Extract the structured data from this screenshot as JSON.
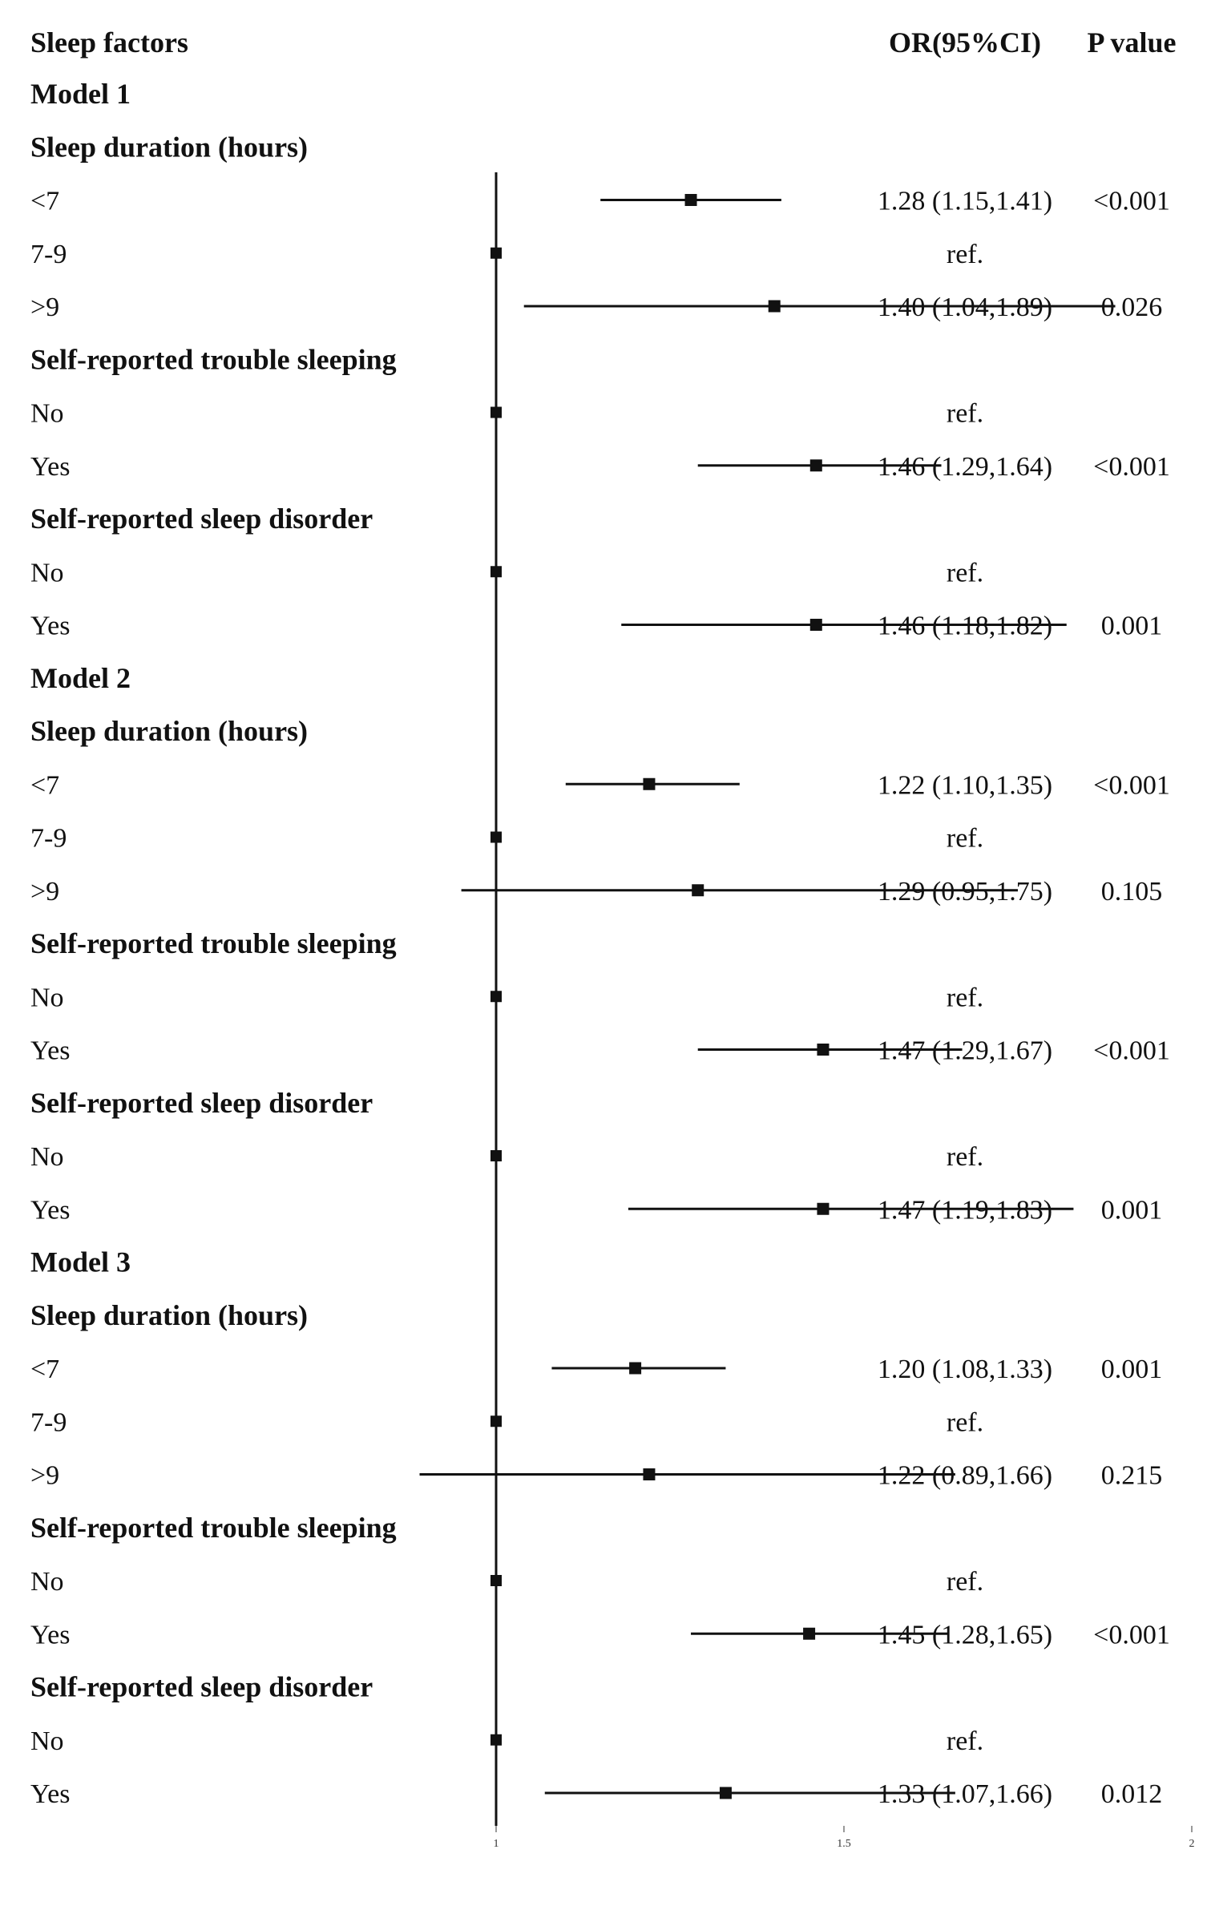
{
  "header": {
    "factor_col": "Sleep factors",
    "or_col": "OR(95%CI)",
    "p_col": "P value"
  },
  "chart_data": {
    "type": "forest",
    "reference_value": 1,
    "xlim": [
      1,
      2
    ],
    "xticks": [
      "1",
      "1.5",
      "2"
    ],
    "rows": [
      {
        "label": "Model 1",
        "kind": "model"
      },
      {
        "label": "Sleep duration (hours)",
        "kind": "group"
      },
      {
        "label": "<7",
        "kind": "item",
        "or": 1.28,
        "lo": 1.15,
        "hi": 1.41,
        "or_text": "1.28 (1.15,1.41)",
        "p": "<0.001"
      },
      {
        "label": "7-9",
        "kind": "ref",
        "or": 1,
        "or_text": "ref.",
        "p": ""
      },
      {
        "label": ">9",
        "kind": "item",
        "or": 1.4,
        "lo": 1.04,
        "hi": 1.89,
        "or_text": "1.40 (1.04,1.89)",
        "p": "0.026"
      },
      {
        "label": "Self-reported trouble sleeping",
        "kind": "group"
      },
      {
        "label": "No",
        "kind": "ref",
        "or": 1,
        "or_text": "ref.",
        "p": ""
      },
      {
        "label": "Yes",
        "kind": "item",
        "or": 1.46,
        "lo": 1.29,
        "hi": 1.64,
        "or_text": "1.46 (1.29,1.64)",
        "p": "<0.001"
      },
      {
        "label": "Self-reported sleep disorder",
        "kind": "group"
      },
      {
        "label": "No",
        "kind": "ref",
        "or": 1,
        "or_text": "ref.",
        "p": ""
      },
      {
        "label": "Yes",
        "kind": "item",
        "or": 1.46,
        "lo": 1.18,
        "hi": 1.82,
        "or_text": "1.46 (1.18,1.82)",
        "p": "0.001"
      },
      {
        "label": "Model 2",
        "kind": "model"
      },
      {
        "label": "Sleep duration (hours)",
        "kind": "group"
      },
      {
        "label": "<7",
        "kind": "item",
        "or": 1.22,
        "lo": 1.1,
        "hi": 1.35,
        "or_text": "1.22 (1.10,1.35)",
        "p": "<0.001"
      },
      {
        "label": "7-9",
        "kind": "ref",
        "or": 1,
        "or_text": "ref.",
        "p": ""
      },
      {
        "label": ">9",
        "kind": "item",
        "or": 1.29,
        "lo": 0.95,
        "hi": 1.75,
        "or_text": "1.29 (0.95,1.75)",
        "p": "0.105"
      },
      {
        "label": "Self-reported trouble sleeping",
        "kind": "group"
      },
      {
        "label": "No",
        "kind": "ref",
        "or": 1,
        "or_text": "ref.",
        "p": ""
      },
      {
        "label": "Yes",
        "kind": "item",
        "or": 1.47,
        "lo": 1.29,
        "hi": 1.67,
        "or_text": "1.47 (1.29,1.67)",
        "p": "<0.001"
      },
      {
        "label": "Self-reported sleep disorder",
        "kind": "group"
      },
      {
        "label": "No",
        "kind": "ref",
        "or": 1,
        "or_text": "ref.",
        "p": ""
      },
      {
        "label": "Yes",
        "kind": "item",
        "or": 1.47,
        "lo": 1.19,
        "hi": 1.83,
        "or_text": "1.47 (1.19,1.83)",
        "p": "0.001"
      },
      {
        "label": "Model 3",
        "kind": "model"
      },
      {
        "label": "Sleep duration (hours)",
        "kind": "group"
      },
      {
        "label": "<7",
        "kind": "item",
        "or": 1.2,
        "lo": 1.08,
        "hi": 1.33,
        "or_text": "1.20 (1.08,1.33)",
        "p": "0.001"
      },
      {
        "label": "7-9",
        "kind": "ref",
        "or": 1,
        "or_text": "ref.",
        "p": ""
      },
      {
        "label": ">9",
        "kind": "item",
        "or": 1.22,
        "lo": 0.89,
        "hi": 1.66,
        "or_text": "1.22 (0.89,1.66)",
        "p": "0.215"
      },
      {
        "label": "Self-reported trouble sleeping",
        "kind": "group"
      },
      {
        "label": "No",
        "kind": "ref",
        "or": 1,
        "or_text": "ref.",
        "p": ""
      },
      {
        "label": "Yes",
        "kind": "item",
        "or": 1.45,
        "lo": 1.28,
        "hi": 1.65,
        "or_text": "1.45 (1.28,1.65)",
        "p": "<0.001"
      },
      {
        "label": "Self-reported sleep disorder",
        "kind": "group"
      },
      {
        "label": "No",
        "kind": "ref",
        "or": 1,
        "or_text": "ref.",
        "p": ""
      },
      {
        "label": "Yes",
        "kind": "item",
        "or": 1.33,
        "lo": 1.07,
        "hi": 1.66,
        "or_text": "1.33 (1.07,1.66)",
        "p": "0.012"
      }
    ]
  }
}
